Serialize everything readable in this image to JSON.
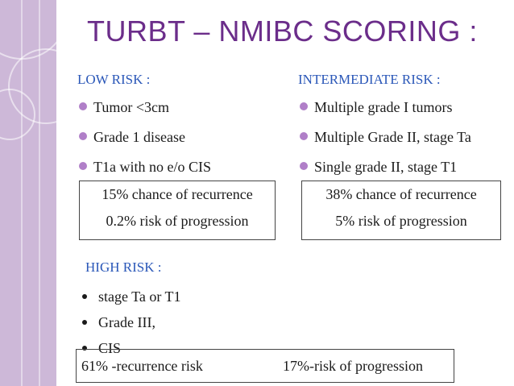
{
  "slide": {
    "title": "TURBT – NMIBC SCORING :",
    "low_risk": {
      "heading": "LOW RISK :",
      "items": [
        "Tumor <3cm",
        "Grade 1 disease",
        "T1a with no e/o CIS"
      ],
      "recurrence": "15% chance of recurrence",
      "progression": "0.2% risk of progression"
    },
    "intermediate_risk": {
      "heading": "INTERMEDIATE RISK :",
      "items": [
        "Multiple grade I tumors",
        "Multiple Grade II, stage Ta",
        "Single grade II, stage T1"
      ],
      "recurrence": "38% chance of recurrence",
      "progression": "5% risk of progression"
    },
    "high_risk": {
      "heading": "HIGH RISK :",
      "items": [
        "stage Ta or T1",
        "Grade III,",
        "CIS"
      ],
      "recurrence": "61% -recurrence risk",
      "progression": "17%-risk of progression"
    }
  },
  "colors": {
    "title": "#6b2d8a",
    "heading": "#2a57b8",
    "sidebar": "#cdb8d8",
    "bullet": "#b07fc8"
  }
}
